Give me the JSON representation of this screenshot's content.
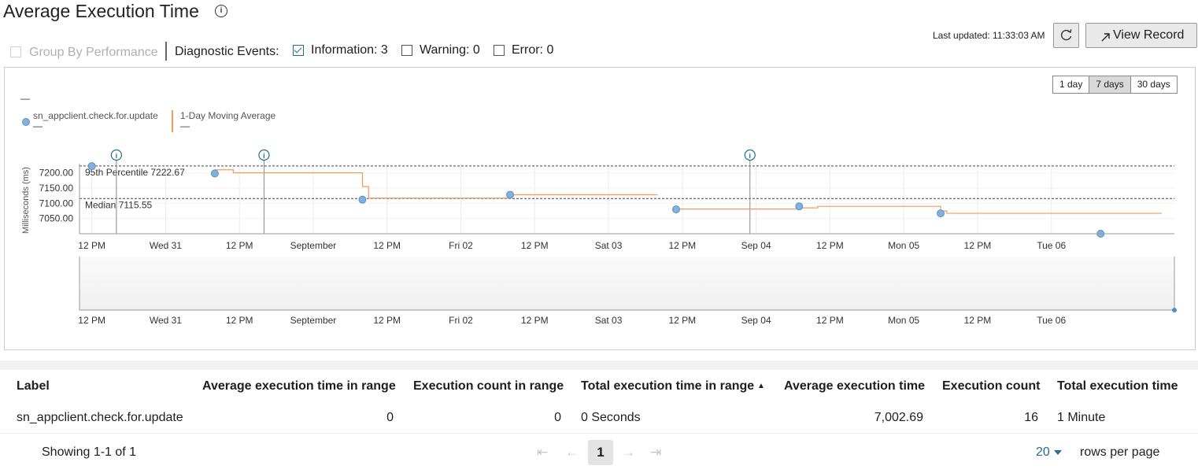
{
  "header": {
    "title": "Average Execution Time",
    "last_updated": "Last updated: 11:33:03 AM",
    "view_record_label": "View Record"
  },
  "filters": {
    "group_by_label": "Group By Performance",
    "diag_label": "Diagnostic Events:",
    "information_label": "Information: 3",
    "warning_label": "Warning: 0",
    "error_label": "Error: 0"
  },
  "range": {
    "buttons": [
      "1 day",
      "7 days",
      "30 days"
    ],
    "active": "7 days"
  },
  "legend": {
    "top_dash": "—",
    "series1": "sn_appclient.check.for.update",
    "series1_sub": "—",
    "series2": "1-Day Moving Average",
    "series2_sub": "—"
  },
  "chart_data": {
    "type": "scatter",
    "ylabel": "Milliseconds (ms)",
    "y_ticks": [
      "7200.00",
      "7150.00",
      "7100.00",
      "7050.00"
    ],
    "x_ticks": [
      "12 PM",
      "Wed 31",
      "12 PM",
      "September",
      "12 PM",
      "Fri 02",
      "12 PM",
      "Sat 03",
      "12 PM",
      "Sep 04",
      "12 PM",
      "Mon 05",
      "12 PM",
      "Tue 06"
    ],
    "reference_lines": [
      {
        "label": "95th Percentile 7222.67",
        "value": 7222.67
      },
      {
        "label": "Median 7115.55",
        "value": 7115.55
      }
    ],
    "series": [
      {
        "name": "sn_appclient.check.for.update",
        "points": [
          {
            "x": "2022-08-30 12:00",
            "y": 7222
          },
          {
            "x": "2022-08-31 08:00",
            "y": 7198
          },
          {
            "x": "2022-09-01 08:00",
            "y": 7112
          },
          {
            "x": "2022-09-02 08:00",
            "y": 7128
          },
          {
            "x": "2022-09-03 11:00",
            "y": 7080
          },
          {
            "x": "2022-09-04 07:00",
            "y": 7090
          },
          {
            "x": "2022-09-05 06:00",
            "y": 7067
          },
          {
            "x": "2022-09-06 08:00",
            "y": 7000
          }
        ]
      },
      {
        "name": "1-Day Moving Average",
        "step_points": [
          {
            "x": "2022-08-31 08:00",
            "y": 7210
          },
          {
            "x": "2022-08-31 11:00",
            "y": 7200
          },
          {
            "x": "2022-09-01 08:00",
            "y": 7155
          },
          {
            "x": "2022-09-01 09:00",
            "y": 7117
          },
          {
            "x": "2022-09-02 08:00",
            "y": 7128
          },
          {
            "x": "2022-09-03 08:00",
            "y": null
          },
          {
            "x": "2022-09-03 11:00",
            "y": 7081
          },
          {
            "x": "2022-09-04 07:00",
            "y": 7085
          },
          {
            "x": "2022-09-04 10:00",
            "y": 7090
          },
          {
            "x": "2022-09-05 06:00",
            "y": 7075
          },
          {
            "x": "2022-09-05 07:00",
            "y": 7067
          },
          {
            "x": "2022-09-06 06:00",
            "y": 7067
          }
        ]
      }
    ],
    "events": [
      "2022-08-30 16:00",
      "2022-08-31 16:00",
      "2022-09-03 23:00"
    ],
    "info_icon": "i"
  },
  "table": {
    "headers": [
      "Label",
      "Average execution time in range",
      "Execution count in range",
      "Total execution time in range",
      "Average execution time",
      "Execution count",
      "Total execution time"
    ],
    "sort_indicator": "▲",
    "rows": [
      [
        "sn_appclient.check.for.update",
        "0",
        "0",
        "0 Seconds",
        "7,002.69",
        "16",
        "1 Minute"
      ]
    ]
  },
  "pagination": {
    "showing": "Showing 1-1 of 1",
    "page": "1",
    "per_page": "20",
    "per_page_label": "rows per page"
  },
  "colors": {
    "series": "#7fb2df",
    "moving_avg": "#f39b5b",
    "accent": "#1f6f96"
  }
}
